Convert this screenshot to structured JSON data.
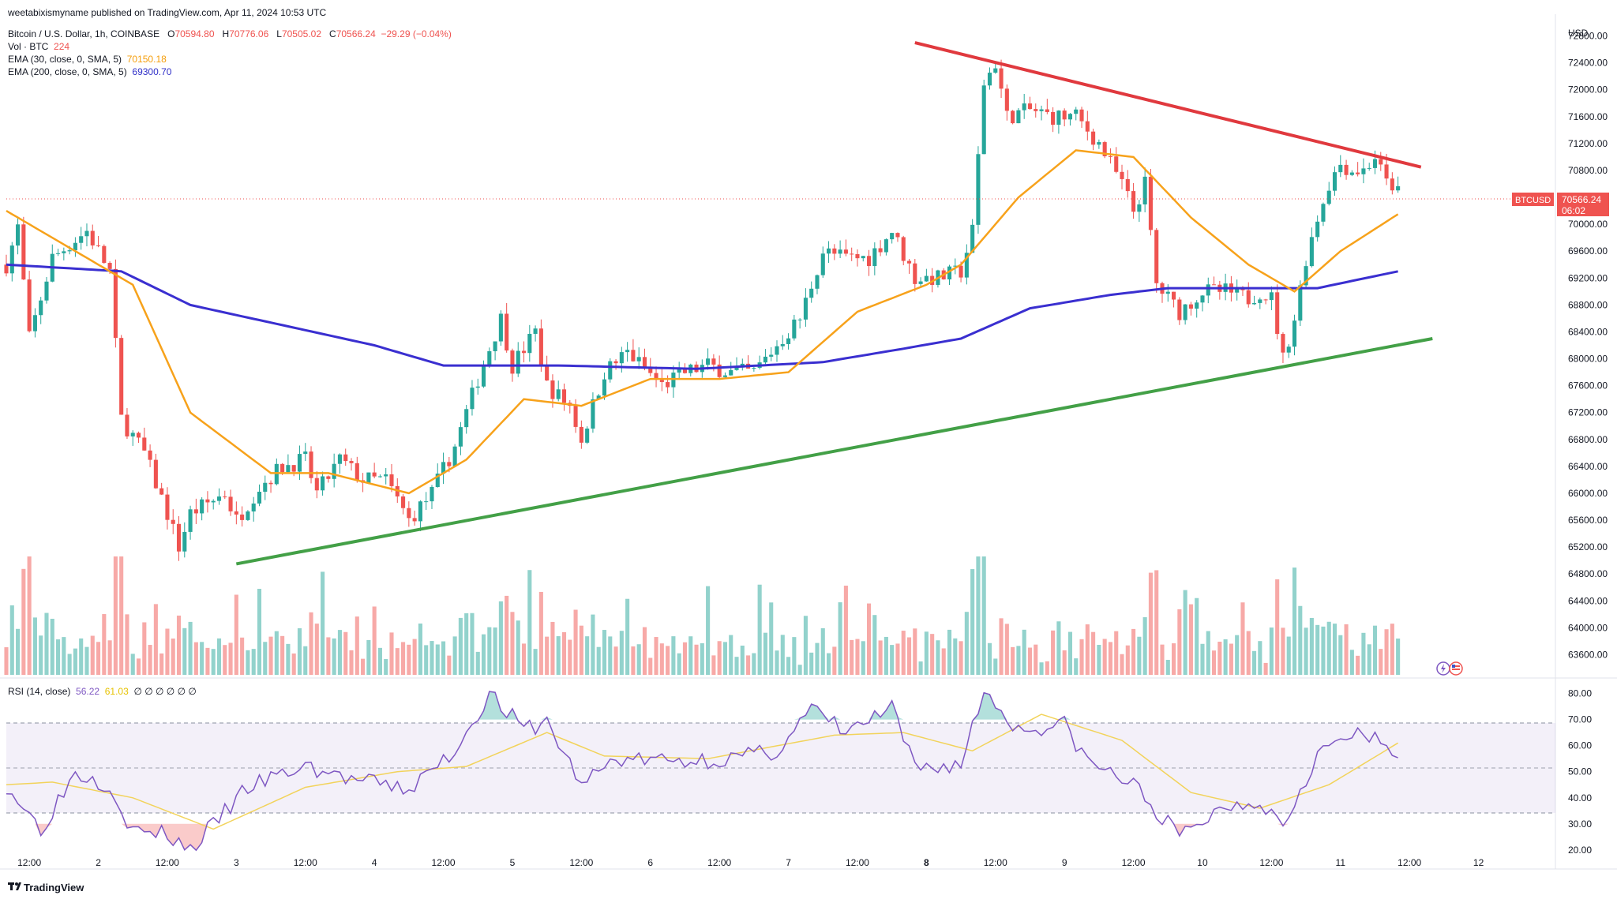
{
  "header": {
    "published": "weetabixismyname published on TradingView.com, Apr 11, 2024 10:53 UTC",
    "symbol_title": "Bitcoin / U.S. Dollar, 1h, COINBASE",
    "ohlc": {
      "o_label": "O",
      "o": "70594.80",
      "h_label": "H",
      "h": "70776.06",
      "l_label": "L",
      "l": "70505.02",
      "c_label": "C",
      "c": "70566.24",
      "change": "−29.29 (−0.04%)"
    },
    "vol_label": "Vol · BTC",
    "vol_value": "224",
    "ema30_label": "EMA (30, close, 0, SMA, 5)",
    "ema30_value": "70150.18",
    "ema200_label": "EMA (200, close, 0, SMA, 5)",
    "ema200_value": "69300.70",
    "rsi_label": "RSI (14, close)",
    "rsi_value": "56.22",
    "rsi_ma_value": "61.03",
    "rsi_extra": "∅ ∅ ∅ ∅ ∅ ∅"
  },
  "price_scale": {
    "currency": "USD",
    "labels": [
      "72800.00",
      "72400.00",
      "72000.00",
      "71600.00",
      "71200.00",
      "70800.00",
      "70000.00",
      "69600.00",
      "69200.00",
      "68800.00",
      "68400.00",
      "68000.00",
      "67600.00",
      "67200.00",
      "66800.00",
      "66400.00",
      "66000.00",
      "65600.00",
      "65200.00",
      "64800.00",
      "64400.00",
      "64000.00",
      "63600.00"
    ],
    "last_symbol": "BTCUSD",
    "last_price": "70566.24",
    "countdown": "06:02"
  },
  "rsi_scale": {
    "labels": [
      "80.00",
      "70.00",
      "60.00",
      "50.00",
      "40.00",
      "30.00",
      "20.00"
    ]
  },
  "time_axis": {
    "labels": [
      "12:00",
      "2",
      "12:00",
      "3",
      "12:00",
      "4",
      "12:00",
      "5",
      "12:00",
      "6",
      "12:00",
      "7",
      "12:00",
      "8",
      "12:00",
      "9",
      "12:00",
      "10",
      "12:00",
      "11",
      "12:00",
      "12"
    ]
  },
  "brand": "TradingView",
  "colors": {
    "up": "#26a69a",
    "down": "#ef5350",
    "ema30": "#f7a21b",
    "ema200": "#3a2fd0",
    "resistance": "#e0393e",
    "support": "#43a047",
    "rsi": "#7e57c2",
    "rsi_ma": "#f2d35b"
  },
  "chart_data": {
    "type": "candlestick",
    "title": "Bitcoin / U.S. Dollar, 1h, COINBASE",
    "ylim": [
      63300,
      73100
    ],
    "x_range": [
      "Apr 1 08:00",
      "Apr 12 12:00"
    ],
    "anchors": [
      [
        "Apr 1 08:00",
        69400
      ],
      [
        "Apr 1 10:00",
        69950
      ],
      [
        "Apr 1 12:00",
        68300
      ],
      [
        "Apr 1 16:00",
        69500
      ],
      [
        "Apr 1 22:00",
        69900
      ],
      [
        "Apr 2 02:00",
        69300
      ],
      [
        "Apr 2 04:00",
        67100
      ],
      [
        "Apr 2 08:00",
        66600
      ],
      [
        "Apr 2 12:00",
        65700
      ],
      [
        "Apr 2 14:00",
        65200
      ],
      [
        "Apr 2 16:00",
        65700
      ],
      [
        "Apr 2 22:00",
        66000
      ],
      [
        "Apr 3 00:00",
        65600
      ],
      [
        "Apr 3 04:00",
        66100
      ],
      [
        "Apr 3 08:00",
        66400
      ],
      [
        "Apr 3 12:00",
        66500
      ],
      [
        "Apr 3 14:00",
        66000
      ],
      [
        "Apr 3 18:00",
        66500
      ],
      [
        "Apr 3 22:00",
        66200
      ],
      [
        "Apr 4 02:00",
        66200
      ],
      [
        "Apr 4 06:00",
        65600
      ],
      [
        "Apr 4 10:00",
        66000
      ],
      [
        "Apr 4 14:00",
        66700
      ],
      [
        "Apr 4 18:00",
        67700
      ],
      [
        "Apr 4 22:00",
        68600
      ],
      [
        "Apr 5 00:00",
        67900
      ],
      [
        "Apr 5 04:00",
        68400
      ],
      [
        "Apr 5 06:00",
        67600
      ],
      [
        "Apr 5 10:00",
        67300
      ],
      [
        "Apr 5 12:00",
        66800
      ],
      [
        "Apr 5 16:00",
        67800
      ],
      [
        "Apr 5 20:00",
        68100
      ],
      [
        "Apr 6 02:00",
        67600
      ],
      [
        "Apr 6 06:00",
        67800
      ],
      [
        "Apr 6 10:00",
        67900
      ],
      [
        "Apr 6 14:00",
        67800
      ],
      [
        "Apr 6 18:00",
        67800
      ],
      [
        "Apr 6 22:00",
        68200
      ],
      [
        "Apr 7 02:00",
        68600
      ],
      [
        "Apr 7 06:00",
        69600
      ],
      [
        "Apr 7 10:00",
        69500
      ],
      [
        "Apr 7 14:00",
        69500
      ],
      [
        "Apr 7 18:00",
        69900
      ],
      [
        "Apr 7 22:00",
        69200
      ],
      [
        "Apr 8 02:00",
        69200
      ],
      [
        "Apr 8 06:00",
        69300
      ],
      [
        "Apr 8 08:00",
        69900
      ],
      [
        "Apr 8 10:00",
        72100
      ],
      [
        "Apr 8 12:00",
        72400
      ],
      [
        "Apr 8 14:00",
        71600
      ],
      [
        "Apr 8 18:00",
        71700
      ],
      [
        "Apr 8 22:00",
        71600
      ],
      [
        "Apr 9 02:00",
        71600
      ],
      [
        "Apr 9 06:00",
        71200
      ],
      [
        "Apr 9 10:00",
        70600
      ],
      [
        "Apr 9 12:00",
        70200
      ],
      [
        "Apr 9 14:00",
        70600
      ],
      [
        "Apr 9 16:00",
        69100
      ],
      [
        "Apr 9 20:00",
        68700
      ],
      [
        "Apr 10 00:00",
        69000
      ],
      [
        "Apr 10 04:00",
        69000
      ],
      [
        "Apr 10 08:00",
        68900
      ],
      [
        "Apr 10 10:00",
        69000
      ],
      [
        "Apr 10 12:00",
        68900
      ],
      [
        "Apr 10 14:00",
        68000
      ],
      [
        "Apr 10 16:00",
        68600
      ],
      [
        "Apr 10 18:00",
        69500
      ],
      [
        "Apr 10 20:00",
        70100
      ],
      [
        "Apr 10 22:00",
        70600
      ],
      [
        "Apr 11 00:00",
        70900
      ],
      [
        "Apr 11 02:00",
        70800
      ],
      [
        "Apr 11 04:00",
        70800
      ],
      [
        "Apr 11 06:00",
        71000
      ],
      [
        "Apr 11 08:00",
        70600
      ],
      [
        "Apr 11 10:00",
        70566
      ]
    ],
    "ema30_points": [
      [
        "Apr 1 08:00",
        70200
      ],
      [
        "Apr 1 18:00",
        69700
      ],
      [
        "Apr 2 06:00",
        69100
      ],
      [
        "Apr 2 16:00",
        67200
      ],
      [
        "Apr 3 06:00",
        66300
      ],
      [
        "Apr 3 16:00",
        66300
      ],
      [
        "Apr 4 06:00",
        66000
      ],
      [
        "Apr 4 16:00",
        66500
      ],
      [
        "Apr 5 02:00",
        67400
      ],
      [
        "Apr 5 12:00",
        67300
      ],
      [
        "Apr 6 00:00",
        67700
      ],
      [
        "Apr 6 12:00",
        67700
      ],
      [
        "Apr 7 00:00",
        67800
      ],
      [
        "Apr 7 12:00",
        68700
      ],
      [
        "Apr 8 00:00",
        69100
      ],
      [
        "Apr 8 06:00",
        69400
      ],
      [
        "Apr 8 16:00",
        70400
      ],
      [
        "Apr 9 02:00",
        71100
      ],
      [
        "Apr 9 12:00",
        71000
      ],
      [
        "Apr 9 22:00",
        70100
      ],
      [
        "Apr 10 08:00",
        69400
      ],
      [
        "Apr 10 16:00",
        69000
      ],
      [
        "Apr 11 00:00",
        69600
      ],
      [
        "Apr 11 10:00",
        70150
      ]
    ],
    "ema200_points": [
      [
        "Apr 1 08:00",
        69400
      ],
      [
        "Apr 2 04:00",
        69300
      ],
      [
        "Apr 2 16:00",
        68800
      ],
      [
        "Apr 3 08:00",
        68500
      ],
      [
        "Apr 4 00:00",
        68200
      ],
      [
        "Apr 4 12:00",
        67900
      ],
      [
        "Apr 5 08:00",
        67900
      ],
      [
        "Apr 6 08:00",
        67850
      ],
      [
        "Apr 7 06:00",
        67950
      ],
      [
        "Apr 7 20:00",
        68150
      ],
      [
        "Apr 8 06:00",
        68300
      ],
      [
        "Apr 8 18:00",
        68750
      ],
      [
        "Apr 9 08:00",
        68950
      ],
      [
        "Apr 9 18:00",
        69050
      ],
      [
        "Apr 10 12:00",
        69050
      ],
      [
        "Apr 10 20:00",
        69050
      ],
      [
        "Apr 11 10:00",
        69300
      ]
    ],
    "trendlines": [
      {
        "color": "resistance",
        "from": [
          "Apr 7 22:00",
          72700
        ],
        "to": [
          "Apr 11 14:00",
          70850
        ]
      },
      {
        "color": "support",
        "from": [
          "Apr 3 00:00",
          64950
        ],
        "to": [
          "Apr 11 16:00",
          68300
        ]
      }
    ],
    "rsi_ylim": [
      13,
      85
    ],
    "rsi_bands": [
      70,
      50,
      30
    ],
    "rsi_anchors": [
      [
        "Apr 1 08:00",
        45
      ],
      [
        "Apr 1 14:00",
        28
      ],
      [
        "Apr 1 20:00",
        50
      ],
      [
        "Apr 2 02:00",
        45
      ],
      [
        "Apr 2 06:00",
        27
      ],
      [
        "Apr 2 12:00",
        26
      ],
      [
        "Apr 2 16:00",
        20
      ],
      [
        "Apr 3 02:00",
        44
      ],
      [
        "Apr 3 12:00",
        52
      ],
      [
        "Apr 3 20:00",
        47
      ],
      [
        "Apr 4 06:00",
        43
      ],
      [
        "Apr 4 14:00",
        58
      ],
      [
        "Apr 4 20:00",
        80
      ],
      [
        "Apr 5 02:00",
        66
      ],
      [
        "Apr 5 06:00",
        69
      ],
      [
        "Apr 5 12:00",
        45
      ],
      [
        "Apr 5 18:00",
        55
      ],
      [
        "Apr 6 04:00",
        54
      ],
      [
        "Apr 6 14:00",
        55
      ],
      [
        "Apr 6 22:00",
        58
      ],
      [
        "Apr 7 04:00",
        74
      ],
      [
        "Apr 7 10:00",
        65
      ],
      [
        "Apr 7 18:00",
        74
      ],
      [
        "Apr 7 22:00",
        51
      ],
      [
        "Apr 8 06:00",
        53
      ],
      [
        "Apr 8 10:00",
        81
      ],
      [
        "Apr 8 16:00",
        66
      ],
      [
        "Apr 9 00:00",
        68
      ],
      [
        "Apr 9 04:00",
        54
      ],
      [
        "Apr 9 12:00",
        45
      ],
      [
        "Apr 9 20:00",
        25
      ],
      [
        "Apr 10 04:00",
        37
      ],
      [
        "Apr 10 10:00",
        39
      ],
      [
        "Apr 10 14:00",
        30
      ],
      [
        "Apr 10 20:00",
        57
      ],
      [
        "Apr 11 02:00",
        64
      ],
      [
        "Apr 11 06:00",
        62
      ],
      [
        "Apr 11 10:00",
        56
      ]
    ],
    "rsi_ma_anchors": [
      [
        "Apr 1 08:00",
        45
      ],
      [
        "Apr 1 16:00",
        46
      ],
      [
        "Apr 2 06:00",
        40
      ],
      [
        "Apr 2 20:00",
        28
      ],
      [
        "Apr 3 12:00",
        44
      ],
      [
        "Apr 4 04:00",
        50
      ],
      [
        "Apr 4 16:00",
        52
      ],
      [
        "Apr 5 06:00",
        65
      ],
      [
        "Apr 5 16:00",
        56
      ],
      [
        "Apr 6 10:00",
        55
      ],
      [
        "Apr 7 08:00",
        64
      ],
      [
        "Apr 7 20:00",
        65
      ],
      [
        "Apr 8 08:00",
        58
      ],
      [
        "Apr 8 20:00",
        72
      ],
      [
        "Apr 9 10:00",
        62
      ],
      [
        "Apr 9 22:00",
        42
      ],
      [
        "Apr 10 10:00",
        36
      ],
      [
        "Apr 10 22:00",
        45
      ],
      [
        "Apr 11 10:00",
        61
      ]
    ]
  }
}
